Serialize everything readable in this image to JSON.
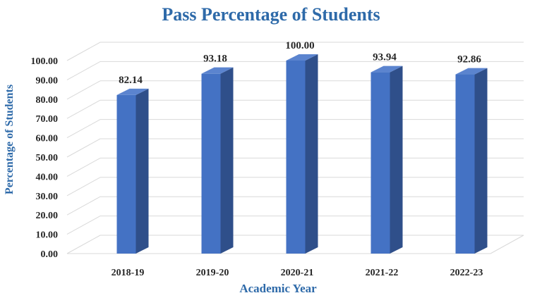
{
  "chart_data": {
    "type": "bar",
    "title": "Pass Percentage of Students",
    "xlabel": "Academic Year",
    "ylabel": "Percentage of Students",
    "categories": [
      "2018-19",
      "2019-20",
      "2020-21",
      "2021-22",
      "2022-23"
    ],
    "values": [
      82.14,
      93.18,
      100.0,
      93.94,
      92.86
    ],
    "value_labels": [
      "82.14",
      "93.18",
      "100.00",
      "93.94",
      "92.86"
    ],
    "ylim": [
      0,
      100
    ],
    "yticks": [
      "0.00",
      "10.00",
      "20.00",
      "30.00",
      "40.00",
      "50.00",
      "60.00",
      "70.00",
      "80.00",
      "90.00",
      "100.00"
    ],
    "grid": true,
    "style": "3d-column",
    "colors": {
      "bar_front": "#4472c4",
      "bar_side": "#2f4f8a",
      "bar_top": "#5b84cf",
      "title": "#2e6aa9",
      "text": "#262626",
      "grid": "#d9d9d9"
    }
  }
}
